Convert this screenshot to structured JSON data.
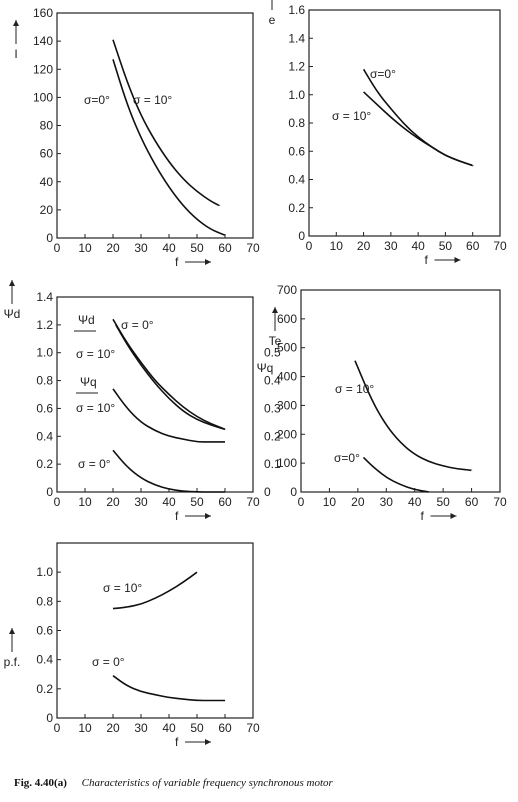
{
  "caption": {
    "figure_label": "Fig. 4.40(a)",
    "text": "Characteristics of variable frequency synchronous motor"
  },
  "chart_data": [
    {
      "type": "line",
      "ylabel": "I",
      "xlabel": "f",
      "xlim": [
        0,
        70
      ],
      "ylim": [
        0,
        160
      ],
      "x_ticks": [
        "0",
        "10",
        "20",
        "30",
        "40",
        "50",
        "60",
        "70"
      ],
      "y_ticks": [
        "0",
        "20",
        "40",
        "60",
        "80",
        "100",
        "120",
        "140",
        "160"
      ],
      "series": [
        {
          "name": "σ=0°",
          "x": [
            20,
            25,
            30,
            35,
            40,
            45,
            50,
            55,
            60
          ],
          "y": [
            127,
            95,
            71,
            52,
            36,
            23,
            13,
            6,
            2
          ]
        },
        {
          "name": "σ = 10°",
          "x": [
            20,
            25,
            30,
            35,
            40,
            45,
            50,
            55,
            58
          ],
          "y": [
            141,
            111,
            87,
            69,
            54,
            42,
            33,
            26,
            23
          ]
        }
      ]
    },
    {
      "type": "line",
      "ylabel": "e",
      "xlabel": "f",
      "xlim": [
        0,
        70
      ],
      "ylim": [
        0,
        1.6
      ],
      "x_ticks": [
        "0",
        "10",
        "20",
        "30",
        "40",
        "50",
        "60",
        "70"
      ],
      "y_ticks": [
        "0",
        "0.2",
        "0.4",
        "0.6",
        "0.8",
        "1.0",
        "1.2",
        "1.4",
        "1.6"
      ],
      "series": [
        {
          "name": "σ=0°",
          "x": [
            20,
            25,
            30,
            35,
            40,
            45,
            50,
            55,
            60
          ],
          "y": [
            1.18,
            1.02,
            0.9,
            0.79,
            0.7,
            0.63,
            0.57,
            0.53,
            0.5
          ]
        },
        {
          "name": "σ = 10°",
          "x": [
            20,
            25,
            30,
            35,
            40,
            45,
            50,
            55,
            60
          ],
          "y": [
            1.02,
            0.93,
            0.84,
            0.76,
            0.69,
            0.63,
            0.57,
            0.53,
            0.5
          ]
        }
      ]
    },
    {
      "type": "line",
      "ylabel": "Ψd",
      "y2label": "Ψq",
      "xlabel": "f",
      "xlim": [
        0,
        70
      ],
      "ylim": [
        0,
        1.4
      ],
      "y2lim": [
        0,
        0.7
      ],
      "x_ticks": [
        "0",
        "10",
        "20",
        "30",
        "40",
        "50",
        "60",
        "70"
      ],
      "y_ticks": [
        "0",
        "0.2",
        "0.4",
        "0.6",
        "0.8",
        "1.0",
        "1.2",
        "1.4"
      ],
      "y2_ticks": [
        "0",
        "0.1",
        "0.2",
        "0.3",
        "0.4",
        "0.5"
      ],
      "annotations": [
        "Ψd",
        "σ = 10°",
        "Ψq",
        "σ = 10°",
        "σ = 0°",
        "σ = 0°"
      ],
      "series": [
        {
          "name": "Ψd σ = 10°",
          "x": [
            20,
            25,
            30,
            35,
            40,
            45,
            50,
            55,
            60
          ],
          "y": [
            1.24,
            1.07,
            0.93,
            0.8,
            0.7,
            0.61,
            0.54,
            0.49,
            0.45
          ]
        },
        {
          "name": "Ψd σ = 0°",
          "x": [
            21,
            25,
            30,
            35,
            40,
            45,
            50,
            55,
            60
          ],
          "y": [
            1.2,
            1.06,
            0.91,
            0.78,
            0.67,
            0.58,
            0.52,
            0.48,
            0.45
          ]
        },
        {
          "name": "Ψq σ = 10°",
          "x": [
            20,
            25,
            30,
            35,
            40,
            45,
            50,
            55,
            60
          ],
          "y": [
            0.37,
            0.3,
            0.25,
            0.22,
            0.2,
            0.19,
            0.18,
            0.18,
            0.18
          ],
          "axis": "right"
        },
        {
          "name": "Ψq σ = 0°",
          "x": [
            20,
            25,
            30,
            35,
            40,
            45,
            50,
            55,
            60
          ],
          "y": [
            0.15,
            0.09,
            0.05,
            0.025,
            0.01,
            0.003,
            0,
            0,
            0
          ],
          "axis": "right"
        }
      ]
    },
    {
      "type": "line",
      "ylabel": "Te",
      "xlabel": "f",
      "xlim": [
        0,
        70
      ],
      "ylim": [
        0,
        700
      ],
      "x_ticks": [
        "0",
        "10",
        "20",
        "30",
        "40",
        "50",
        "60",
        "70"
      ],
      "y_ticks": [
        "0",
        "100",
        "200",
        "300",
        "400",
        "500",
        "600",
        "700"
      ],
      "series": [
        {
          "name": "σ = 10°",
          "x": [
            19,
            25,
            30,
            35,
            40,
            45,
            50,
            55,
            60
          ],
          "y": [
            455,
            315,
            230,
            170,
            130,
            105,
            90,
            80,
            75
          ]
        },
        {
          "name": "σ=0°",
          "x": [
            22,
            25,
            30,
            35,
            40,
            45
          ],
          "y": [
            120,
            90,
            50,
            25,
            8,
            0
          ]
        }
      ]
    },
    {
      "type": "line",
      "ylabel": "p.f.",
      "xlabel": "f",
      "xlim": [
        0,
        70
      ],
      "ylim": [
        0,
        1.2
      ],
      "x_ticks": [
        "0",
        "10",
        "20",
        "30",
        "40",
        "50",
        "60",
        "70"
      ],
      "y_ticks": [
        "0",
        "0.2",
        "0.4",
        "0.6",
        "0.8",
        "1.0"
      ],
      "series": [
        {
          "name": "σ = 10°",
          "x": [
            20,
            25,
            30,
            35,
            40,
            45,
            50
          ],
          "y": [
            0.75,
            0.76,
            0.78,
            0.82,
            0.87,
            0.93,
            1.0
          ]
        },
        {
          "name": "σ = 0°",
          "x": [
            20,
            25,
            30,
            35,
            40,
            45,
            50,
            55,
            60
          ],
          "y": [
            0.29,
            0.22,
            0.18,
            0.16,
            0.14,
            0.13,
            0.12,
            0.12,
            0.12
          ]
        }
      ]
    }
  ]
}
